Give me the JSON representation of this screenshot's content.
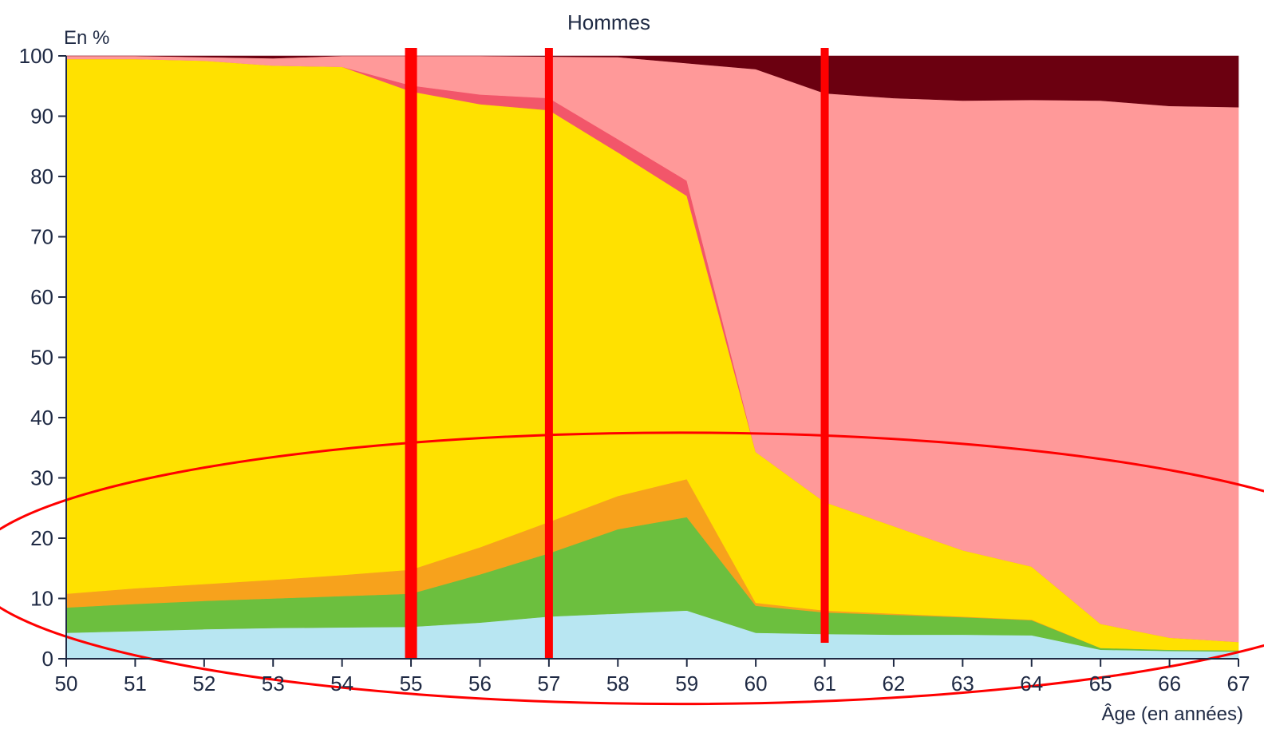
{
  "chart_data": {
    "type": "area",
    "stacked": true,
    "title": "Hommes",
    "ylabel": "En %",
    "xlabel": "Âge (en années)",
    "ylim": [
      0,
      100
    ],
    "xlim": [
      50,
      67
    ],
    "y_ticks": [
      0,
      10,
      20,
      30,
      40,
      50,
      60,
      70,
      80,
      90,
      100
    ],
    "x": [
      50,
      51,
      52,
      53,
      54,
      55,
      56,
      57,
      58,
      59,
      60,
      61,
      62,
      63,
      64,
      65,
      66,
      67
    ],
    "series": [
      {
        "color": "#b8e6f2",
        "values": [
          4.3,
          4.6,
          4.9,
          5.1,
          5.2,
          5.3,
          6.0,
          7.0,
          7.5,
          8.0,
          4.3,
          4.1,
          4.0,
          4.0,
          3.9,
          1.5,
          1.3,
          1.2
        ]
      },
      {
        "color": "#6cbf3e",
        "values": [
          4.2,
          4.5,
          4.7,
          4.9,
          5.2,
          5.5,
          8.0,
          10.5,
          14.0,
          15.5,
          4.5,
          3.6,
          3.3,
          2.9,
          2.5,
          0.3,
          0.2,
          0.2
        ]
      },
      {
        "color": "#f7a21c",
        "values": [
          2.3,
          2.6,
          2.8,
          3.1,
          3.5,
          4.0,
          4.5,
          5.2,
          5.5,
          6.3,
          0.5,
          0.3,
          0.2,
          0.1,
          0.1,
          0.0,
          0.0,
          0.0
        ]
      },
      {
        "color": "#ffe100",
        "values": [
          88.7,
          87.8,
          86.8,
          85.3,
          84.3,
          79.3,
          73.5,
          68.3,
          57.0,
          47.0,
          25.0,
          18.0,
          14.5,
          11.0,
          8.8,
          4.0,
          2.0,
          1.4
        ]
      },
      {
        "color": "#f2566a",
        "values": [
          0.0,
          0.0,
          0.0,
          0.0,
          0.0,
          1.0,
          1.6,
          2.0,
          2.2,
          2.5,
          0.0,
          0.0,
          0.0,
          0.0,
          0.0,
          0.0,
          0.0,
          0.0
        ]
      },
      {
        "color": "#ff9999",
        "values": [
          0.5,
          0.5,
          0.6,
          1.2,
          1.8,
          4.9,
          6.4,
          6.9,
          13.6,
          19.5,
          63.5,
          67.8,
          71.0,
          74.6,
          77.4,
          86.8,
          88.2,
          88.7
        ]
      },
      {
        "color": "#6b0010",
        "values": [
          0.0,
          0.0,
          0.2,
          0.4,
          0.0,
          0.0,
          0.0,
          0.1,
          0.2,
          1.2,
          2.2,
          6.2,
          7.0,
          7.4,
          7.3,
          7.4,
          8.3,
          8.5
        ]
      }
    ],
    "annotations": {
      "color": "#ff0000",
      "vertical_lines_at": [
        55,
        57,
        61
      ],
      "ellipse": {
        "center_x": 58.9,
        "center_y": 15,
        "radius_x": 10.3,
        "radius_y": 22.5
      }
    },
    "grid": false,
    "legend": "none"
  }
}
